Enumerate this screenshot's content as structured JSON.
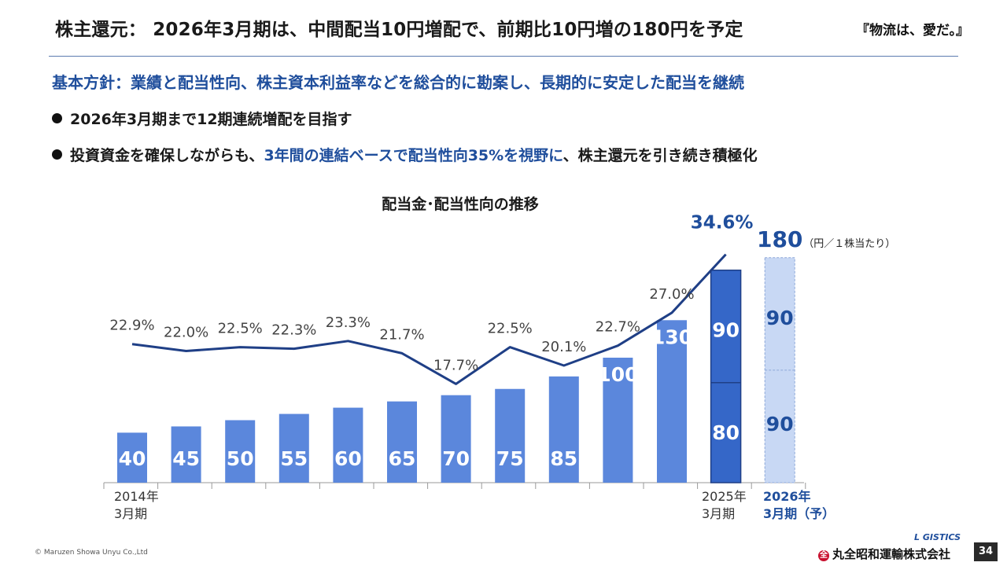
{
  "header": {
    "title": "株主還元： 2026年3月期は、中間配当10円増配で、前期比10円増の180円を予定",
    "motto": "『物流は、愛だ。』"
  },
  "policy": "基本方針：業績と配当性向、株主資本利益率などを総合的に勘案し、長期的に安定した配当を継続",
  "bullets": {
    "b1": "2026年3月期まで12期連続増配を目指す",
    "b2_pre": "投資資金を確保しながらも、",
    "b2_hl": "3年間の連結ベースで配当性向35%を視野に",
    "b2_post": "、株主還元を引き続き積極化"
  },
  "chart_data": {
    "type": "bar",
    "title": "配当金･配当性向の推移",
    "unit_label": "（円／１株当たり）",
    "forecast_total": "180",
    "first_label": [
      "2014年",
      "3月期"
    ],
    "last_actual_label": [
      "2025年",
      "3月期"
    ],
    "forecast_label": [
      "2026年",
      "3月期（予）"
    ],
    "dividends": [
      40,
      45,
      50,
      55,
      60,
      65,
      70,
      75,
      85,
      100,
      130
    ],
    "stacked": [
      {
        "lower": 80,
        "upper": 90
      },
      {
        "lower": 90,
        "upper": 90
      }
    ],
    "payout_ratio": [
      "22.9%",
      "22.0%",
      "22.5%",
      "22.3%",
      "23.3%",
      "21.7%",
      "17.7%",
      "22.5%",
      "20.1%",
      "22.7%",
      "27.0%",
      "34.6%"
    ],
    "payout_values": [
      22.9,
      22.0,
      22.5,
      22.3,
      23.3,
      21.7,
      17.7,
      22.5,
      20.1,
      22.7,
      27.0,
      34.6
    ],
    "ylim": [
      0,
      180
    ],
    "colors": {
      "bar": "#5b87dc",
      "bar_dark": "#3567c8",
      "forecast": "#c8d8f4",
      "line": "#1f3f86",
      "label_blue": "#1f4e9c"
    }
  },
  "footer": {
    "copyright": "© Maruzen Showa Unyu Co.,Ltd",
    "logo_top": "L GISTICS",
    "company": "丸全昭和運輸株式会社",
    "mark": "全",
    "page": "34"
  }
}
